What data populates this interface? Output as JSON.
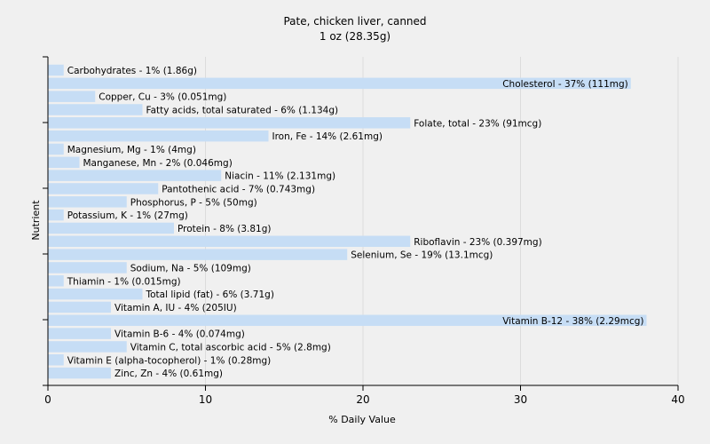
{
  "chart_data": {
    "type": "bar",
    "orientation": "horizontal",
    "title": "Pate, chicken liver, canned",
    "subtitle": "1 oz (28.35g)",
    "xlabel": "% Daily Value",
    "ylabel": "Nutrient",
    "xlim": [
      0,
      40
    ],
    "xticks": [
      0,
      10,
      20,
      30,
      40
    ],
    "grid": true,
    "bar_color": "#c6ddf5",
    "categories": [
      "Carbohydrates",
      "Cholesterol",
      "Copper, Cu",
      "Fatty acids, total saturated",
      "Folate, total",
      "Iron, Fe",
      "Magnesium, Mg",
      "Manganese, Mn",
      "Niacin",
      "Pantothenic acid",
      "Phosphorus, P",
      "Potassium, K",
      "Protein",
      "Riboflavin",
      "Selenium, Se",
      "Sodium, Na",
      "Thiamin",
      "Total lipid (fat)",
      "Vitamin A, IU",
      "Vitamin B-12",
      "Vitamin B-6",
      "Vitamin C, total ascorbic acid",
      "Vitamin E (alpha-tocopherol)",
      "Zinc, Zn"
    ],
    "values": [
      1,
      37,
      3,
      6,
      23,
      14,
      1,
      2,
      11,
      7,
      5,
      1,
      8,
      23,
      19,
      5,
      1,
      6,
      4,
      38,
      4,
      5,
      1,
      4
    ],
    "labels": [
      "Carbohydrates - 1% (1.86g)",
      "Cholesterol - 37% (111mg)",
      "Copper, Cu - 3% (0.051mg)",
      "Fatty acids, total saturated - 6% (1.134g)",
      "Folate, total - 23% (91mcg)",
      "Iron, Fe - 14% (2.61mg)",
      "Magnesium, Mg - 1% (4mg)",
      "Manganese, Mn - 2% (0.046mg)",
      "Niacin - 11% (2.131mg)",
      "Pantothenic acid - 7% (0.743mg)",
      "Phosphorus, P - 5% (50mg)",
      "Potassium, K - 1% (27mg)",
      "Protein - 8% (3.81g)",
      "Riboflavin - 23% (0.397mg)",
      "Selenium, Se - 19% (13.1mcg)",
      "Sodium, Na - 5% (109mg)",
      "Thiamin - 1% (0.015mg)",
      "Total lipid (fat) - 6% (3.71g)",
      "Vitamin A, IU - 4% (205IU)",
      "Vitamin B-12 - 38% (2.29mcg)",
      "Vitamin B-6 - 4% (0.074mg)",
      "Vitamin C, total ascorbic acid - 5% (2.8mg)",
      "Vitamin E (alpha-tocopherol) - 1% (0.28mg)",
      "Zinc, Zn - 4% (0.61mg)"
    ]
  }
}
